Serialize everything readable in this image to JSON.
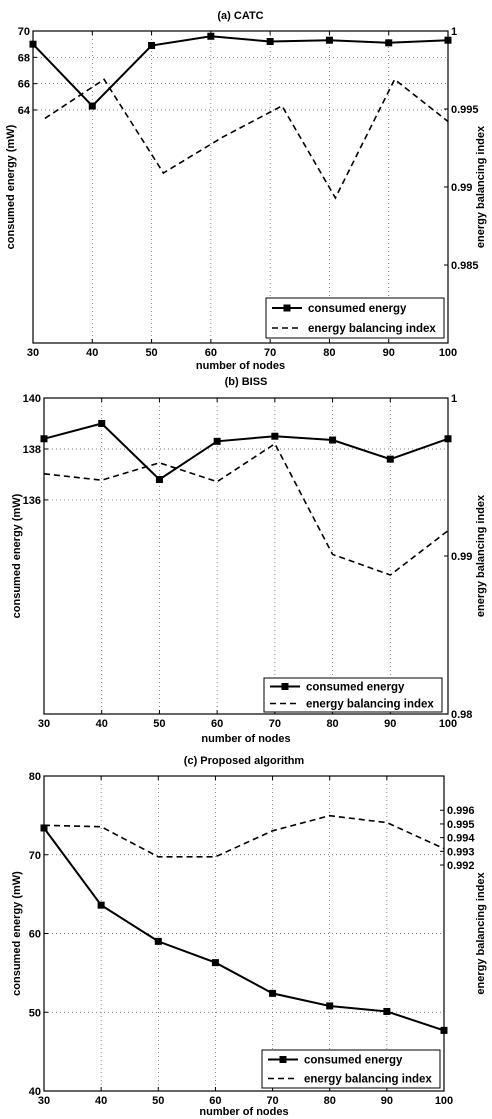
{
  "chart_data": [
    {
      "type": "line",
      "title": "(a) CATC",
      "xlabel": "number of nodes",
      "ylabel": "consumed energy (mW)",
      "y2label": "energy balancing index",
      "x_ticks": [
        "30",
        "40",
        "50",
        "60",
        "70",
        "80",
        "90",
        "100"
      ],
      "y_ticks": [
        "64",
        "66",
        "68",
        "70"
      ],
      "y2_ticks": [
        "0.985",
        "0.99",
        "0.995",
        "1"
      ],
      "xlim": [
        30,
        100
      ],
      "ylim": [
        46.3,
        70
      ],
      "y2lim": [
        0.98,
        1.0
      ],
      "grid": true,
      "legend_position": "bottom-right",
      "series": [
        {
          "name": "consumed energy",
          "axis": "left",
          "style": "solid-square",
          "x": [
            30,
            40,
            50,
            60,
            70,
            80,
            90,
            100
          ],
          "values": [
            69.0,
            64.3,
            68.9,
            69.6,
            69.2,
            69.3,
            69.1,
            69.3
          ]
        },
        {
          "name": "energy balancing index",
          "axis": "right",
          "style": "dashed",
          "x": [
            32,
            42,
            52,
            62,
            72,
            81,
            91,
            100
          ],
          "values": [
            0.9944,
            0.9969,
            0.9909,
            0.9932,
            0.9952,
            0.9893,
            0.9969,
            0.9942
          ]
        }
      ]
    },
    {
      "type": "line",
      "title": "(b) BISS",
      "xlabel": "number of nodes",
      "ylabel": "consumed energy (mW)",
      "y2label": "energy balancing index",
      "x_ticks": [
        "30",
        "40",
        "50",
        "60",
        "70",
        "80",
        "90",
        "100"
      ],
      "y_ticks": [
        "136",
        "138",
        "140"
      ],
      "y2_ticks": [
        "0.98",
        "0.99",
        "1"
      ],
      "xlim": [
        30,
        100
      ],
      "ylim": [
        127.6,
        140
      ],
      "y2lim": [
        0.98,
        1.0
      ],
      "grid": true,
      "legend_position": "bottom-right",
      "series": [
        {
          "name": "consumed energy",
          "axis": "left",
          "style": "solid-square",
          "x": [
            30,
            40,
            50,
            60,
            70,
            80,
            90,
            100
          ],
          "values": [
            138.4,
            139.0,
            136.8,
            138.3,
            138.5,
            138.35,
            137.6,
            138.4
          ]
        },
        {
          "name": "energy balancing index",
          "axis": "right",
          "style": "dashed",
          "x": [
            30,
            40,
            50,
            60,
            70,
            80,
            90,
            100
          ],
          "values": [
            0.9952,
            0.9948,
            0.9959,
            0.9947,
            0.9971,
            0.9901,
            0.9888,
            0.9916
          ]
        }
      ]
    },
    {
      "type": "line",
      "title": "(c) Proposed algorithm",
      "xlabel": "number of nodes",
      "ylabel": "consumed energy (mW)",
      "y2label": "energy balancing index",
      "x_ticks": [
        "30",
        "40",
        "50",
        "60",
        "70",
        "80",
        "90",
        "100"
      ],
      "y_ticks": [
        "40",
        "50",
        "60",
        "70",
        "80"
      ],
      "y2_ticks": [
        "0.992",
        "0.993",
        "0.994",
        "0.995",
        "0.996"
      ],
      "xlim": [
        30,
        100
      ],
      "ylim": [
        40,
        80
      ],
      "y2lim": [
        0.9755,
        0.9985
      ],
      "grid": true,
      "legend_position": "bottom-right",
      "series": [
        {
          "name": "consumed energy",
          "axis": "left",
          "style": "solid-square",
          "x": [
            30,
            40,
            50,
            60,
            70,
            80,
            90,
            100
          ],
          "values": [
            73.4,
            63.6,
            59.0,
            56.3,
            52.4,
            50.8,
            50.1,
            47.7
          ]
        },
        {
          "name": "energy balancing index",
          "axis": "right",
          "style": "dashed",
          "x": [
            30,
            40,
            50,
            60,
            70,
            80,
            90,
            100
          ],
          "values": [
            0.9949,
            0.9948,
            0.9926,
            0.9926,
            0.9945,
            0.9956,
            0.9951,
            0.9932
          ]
        }
      ]
    }
  ]
}
